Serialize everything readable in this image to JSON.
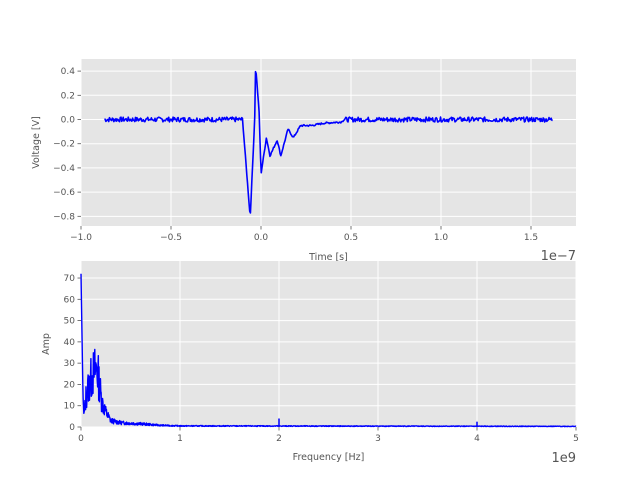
{
  "chart_data": [
    {
      "type": "line",
      "xlabel": "Time [s]",
      "ylabel": "Voltage [V]",
      "offset_text": "1e−7",
      "xlim": [
        -1.0,
        1.75
      ],
      "ylim": [
        -0.88,
        0.5
      ],
      "xticks": [
        -1.0,
        -0.5,
        0.0,
        0.5,
        1.0,
        1.5
      ],
      "xtick_labels": [
        "−1.0",
        "−0.5",
        "0.0",
        "0.5",
        "1.0",
        "1.5"
      ],
      "yticks": [
        0.4,
        0.2,
        0.0,
        -0.2,
        -0.4,
        -0.6,
        -0.8
      ],
      "ytick_labels": [
        "0.4",
        "0.2",
        "0.0",
        "−0.2",
        "−0.4",
        "−0.6",
        "−0.8"
      ],
      "grid": true,
      "color": "#0000ff",
      "x_range": [
        -0.87,
        1.62
      ],
      "noise_amplitude": 0.02,
      "features": [
        {
          "x": -0.1,
          "y": -0.05
        },
        {
          "x": -0.06,
          "y": -0.81
        },
        {
          "x": -0.035,
          "y": 0.0
        },
        {
          "x": -0.03,
          "y": 0.45
        },
        {
          "x": -0.01,
          "y": 0.05
        },
        {
          "x": 0.0,
          "y": -0.45
        },
        {
          "x": 0.03,
          "y": -0.15
        },
        {
          "x": 0.05,
          "y": -0.3
        },
        {
          "x": 0.09,
          "y": -0.17
        },
        {
          "x": 0.11,
          "y": -0.3
        },
        {
          "x": 0.15,
          "y": -0.08
        },
        {
          "x": 0.18,
          "y": -0.15
        },
        {
          "x": 0.22,
          "y": -0.05
        },
        {
          "x": 0.28,
          "y": -0.05
        },
        {
          "x": 0.35,
          "y": -0.03
        },
        {
          "x": 0.45,
          "y": -0.02
        }
      ]
    },
    {
      "type": "line",
      "xlabel": "Frequency [Hz]",
      "ylabel": "Amp",
      "offset_text": "1e9",
      "xlim": [
        0,
        5
      ],
      "ylim": [
        0,
        78
      ],
      "xticks": [
        0,
        1,
        2,
        3,
        4,
        5
      ],
      "xtick_labels": [
        "0",
        "1",
        "2",
        "3",
        "4",
        "5"
      ],
      "yticks": [
        0,
        10,
        20,
        30,
        40,
        50,
        60,
        70
      ],
      "ytick_labels": [
        "0",
        "10",
        "20",
        "30",
        "40",
        "50",
        "60",
        "70"
      ],
      "grid": true,
      "color": "#0000ff",
      "envelope": [
        {
          "x": 0.0,
          "y": 72
        },
        {
          "x": 0.02,
          "y": 15
        },
        {
          "x": 0.03,
          "y": 5
        },
        {
          "x": 0.05,
          "y": 14
        },
        {
          "x": 0.08,
          "y": 20
        },
        {
          "x": 0.12,
          "y": 25
        },
        {
          "x": 0.16,
          "y": 28
        },
        {
          "x": 0.18,
          "y": 22
        },
        {
          "x": 0.21,
          "y": 12
        },
        {
          "x": 0.25,
          "y": 7
        },
        {
          "x": 0.3,
          "y": 3
        },
        {
          "x": 0.4,
          "y": 2
        },
        {
          "x": 0.6,
          "y": 1.5
        },
        {
          "x": 0.8,
          "y": 0.8
        },
        {
          "x": 1.0,
          "y": 0.5
        },
        {
          "x": 5.0,
          "y": 0.3
        }
      ],
      "spikes": [
        {
          "x": 2.0,
          "y": 4.0
        },
        {
          "x": 4.0,
          "y": 2.5
        }
      ]
    }
  ]
}
